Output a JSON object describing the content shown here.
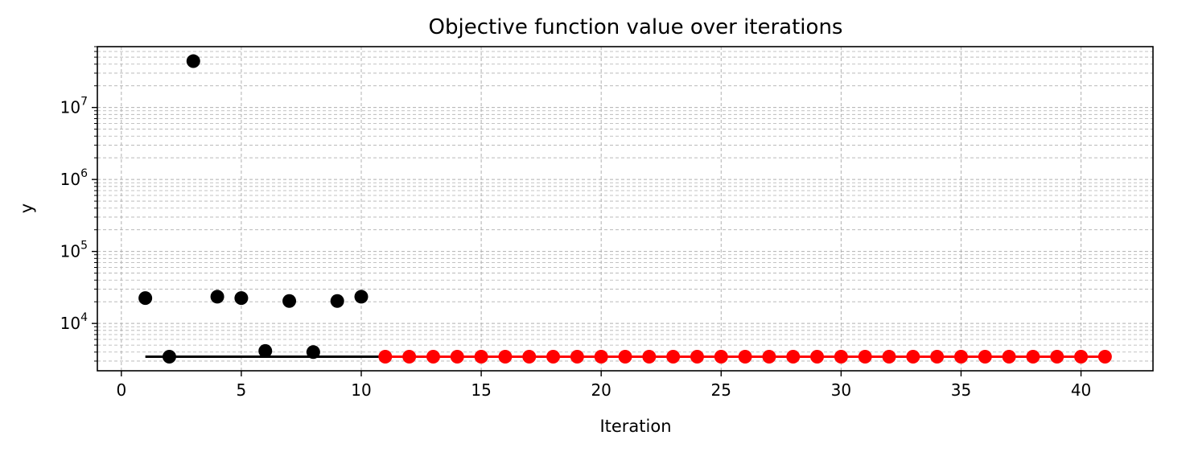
{
  "chart_data": {
    "type": "scatter",
    "title": "Objective function value over iterations",
    "xlabel": "Iteration",
    "ylabel": "y",
    "xlim": [
      -1,
      43
    ],
    "ylim": [
      2200,
      70000000
    ],
    "yscale": "log",
    "grid": "both (major and minor), dashed",
    "x_ticks": [
      0,
      5,
      10,
      15,
      20,
      25,
      30,
      35,
      40
    ],
    "y_ticks": [
      {
        "base": "10",
        "exp": "4",
        "value": 10000
      },
      {
        "base": "10",
        "exp": "5",
        "value": 100000
      },
      {
        "base": "10",
        "exp": "6",
        "value": 1000000
      },
      {
        "base": "10",
        "exp": "7",
        "value": 10000000
      }
    ],
    "series": [
      {
        "color": "#000000",
        "x": [
          1,
          2,
          3,
          4,
          5,
          6,
          7,
          8,
          9,
          10
        ],
        "y": [
          22500,
          3450,
          44000000,
          23500,
          22500,
          4150,
          20500,
          4000,
          20500,
          23500
        ]
      },
      {
        "color": "#ff0000",
        "x": [
          11,
          12,
          13,
          14,
          15,
          16,
          17,
          18,
          19,
          20,
          21,
          22,
          23,
          24,
          25,
          26,
          27,
          28,
          29,
          30,
          31,
          32,
          33,
          34,
          35,
          36,
          37,
          38,
          39,
          40,
          41
        ],
        "y": [
          3450,
          3450,
          3450,
          3450,
          3450,
          3450,
          3450,
          3450,
          3450,
          3450,
          3450,
          3450,
          3450,
          3450,
          3450,
          3450,
          3450,
          3450,
          3450,
          3450,
          3450,
          3450,
          3450,
          3450,
          3450,
          3450,
          3450,
          3450,
          3450,
          3450,
          3450
        ]
      }
    ],
    "best_so_far": [
      {
        "color": "#000000",
        "x_start": 1,
        "x_end": 11,
        "y": 3450
      },
      {
        "color": "#ff0000",
        "x_start": 11,
        "x_end": 41,
        "y": 3450
      }
    ]
  }
}
